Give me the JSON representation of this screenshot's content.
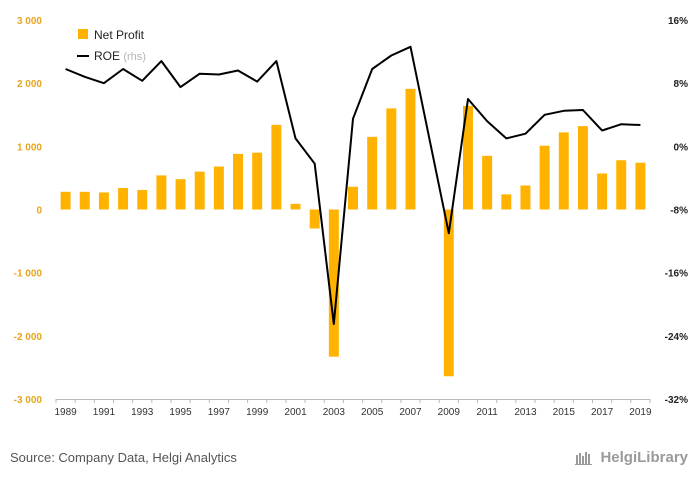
{
  "chart_data": {
    "type": "bar+line",
    "x": [
      "1989",
      "1990",
      "1991",
      "1992",
      "1993",
      "1994",
      "1995",
      "1996",
      "1997",
      "1998",
      "1999",
      "2000",
      "2001",
      "2002",
      "2003",
      "2004",
      "2005",
      "2006",
      "2007",
      "2008",
      "2009",
      "2010",
      "2011",
      "2012",
      "2013",
      "2014",
      "2015",
      "2016",
      "2017",
      "2018",
      "2019"
    ],
    "x_tick_labels": [
      "1989",
      "1991",
      "1993",
      "1995",
      "1997",
      "1999",
      "2001",
      "2003",
      "2005",
      "2007",
      "2009",
      "2011",
      "2013",
      "2015",
      "2017",
      "2019"
    ],
    "series": [
      {
        "name": "Net Profit",
        "type": "bar",
        "axis": "left",
        "values": [
          280,
          280,
          270,
          340,
          310,
          540,
          480,
          600,
          680,
          880,
          900,
          1340,
          90,
          -300,
          -2330,
          360,
          1150,
          1600,
          1910,
          0,
          -2640,
          1640,
          850,
          240,
          380,
          1010,
          1220,
          1320,
          570,
          780,
          740
        ]
      },
      {
        "name": "ROE",
        "name_suffix": "(rhs)",
        "type": "line",
        "axis": "right",
        "values": [
          9.8,
          8.8,
          8.0,
          9.8,
          8.3,
          10.8,
          7.5,
          9.2,
          9.1,
          9.6,
          8.2,
          10.8,
          1.0,
          -2.2,
          -22.5,
          3.5,
          9.8,
          11.5,
          12.6,
          null,
          -11.0,
          6.0,
          3.2,
          1.0,
          1.6,
          4.0,
          4.5,
          4.6,
          2.0,
          2.8,
          2.7
        ]
      }
    ],
    "y_left": {
      "min": -3000,
      "max": 3000,
      "ticks": [
        3000,
        2000,
        1000,
        0,
        -1000,
        -2000,
        -3000
      ],
      "tick_labels": [
        "3 000",
        "2 000",
        "1 000",
        "0",
        "-1 000",
        "-2 000",
        "-3 000"
      ]
    },
    "y_right": {
      "min": -32,
      "max": 16,
      "ticks": [
        16,
        8,
        0,
        -8,
        -16,
        -24,
        -32
      ],
      "tick_labels": [
        "16%",
        "8%",
        "0%",
        "-8%",
        "-16%",
        "-24%",
        "-32%"
      ]
    },
    "grid": false,
    "legend_position": "top-left"
  },
  "colors": {
    "bar": "#ffb300",
    "line": "#000000",
    "left_ticks": "#e8a51c",
    "right_ticks": "#222222"
  },
  "footer": {
    "source": "Source: Company Data, Helgi Analytics",
    "logo_text": "HelgiLibrary"
  }
}
